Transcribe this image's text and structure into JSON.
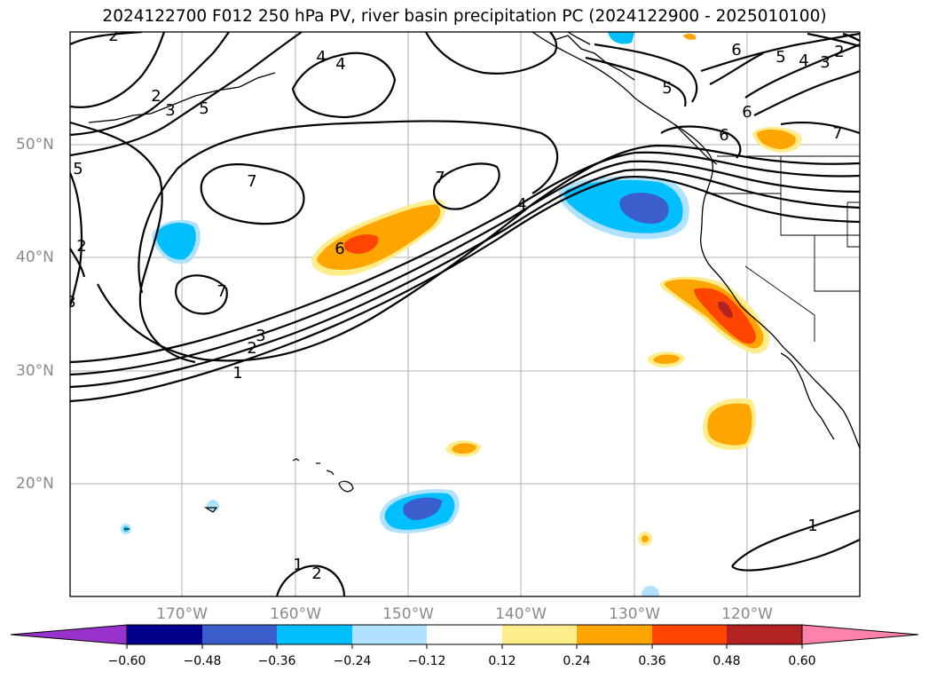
{
  "title": "2024122700 F012 250 hPa PV, river basin precipitation PC (2024122900 - 2025010100)",
  "map": {
    "lat_labels": [
      "50°N",
      "40°N",
      "30°N",
      "20°N"
    ],
    "lon_labels": [
      "170°W",
      "160°W",
      "150°W",
      "140°W",
      "130°W",
      "120°W"
    ],
    "contour_labels": [
      "2",
      "2",
      "3",
      "5",
      "4",
      "4",
      "5",
      "6",
      "5",
      "4",
      "3",
      "2",
      "7",
      "5",
      "6",
      "6",
      "7",
      "7",
      "4",
      "6",
      "2",
      "7",
      "3",
      "2",
      "3",
      "1",
      "1",
      "1",
      "2"
    ],
    "gridlines": true
  },
  "colorbar": {
    "ticks": [
      "−0.60",
      "−0.48",
      "−0.36",
      "−0.24",
      "−0.12",
      "0.12",
      "0.24",
      "0.36",
      "0.48",
      "0.60"
    ],
    "colors": [
      "#9932cc",
      "#00008b",
      "#3a5fcd",
      "#00bfff",
      "#b0e2ff",
      "#ffffff",
      "#ffec8b",
      "#ffa500",
      "#ff4500",
      "#b22222",
      "#ff82ab"
    ]
  }
}
